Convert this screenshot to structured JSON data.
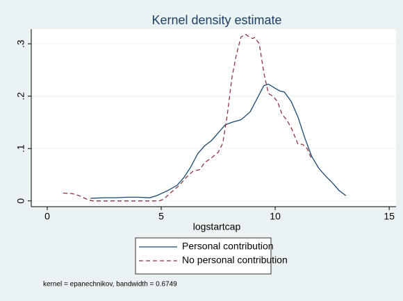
{
  "chart_data": {
    "type": "line",
    "title": "Kernel density estimate",
    "xlabel": "logstartcap",
    "note": "kernel = epanechnikov, bandwidth = 0.6749",
    "xlim": [
      -0.7,
      15.3
    ],
    "xticks": [
      0,
      5,
      10,
      15
    ],
    "ylim": [
      -0.011,
      0.328
    ],
    "yticks": [
      0,
      {
        "value": 0.1,
        "label": ".1"
      },
      {
        "value": 0.2,
        "label": ".2"
      },
      {
        "value": 0.3,
        "label": ".3"
      }
    ],
    "grid": true,
    "legend": "bottom",
    "series": [
      {
        "name": "Personal contribution",
        "color": "#1a476f",
        "dash": "solid",
        "x": [
          1.9,
          2.5,
          3,
          3.5,
          4,
          4.5,
          4.8,
          5.3,
          5.7,
          6.0,
          6.3,
          6.6,
          6.9,
          7.2,
          7.5,
          7.8,
          8.1,
          8.5,
          8.9,
          9.2,
          9.5,
          9.7,
          10.0,
          10.2,
          10.4,
          10.7,
          11.0,
          11.3,
          11.6,
          11.9,
          12.2,
          12.5,
          12.8,
          13.1
        ],
        "values": [
          0.005,
          0.006,
          0.006,
          0.007,
          0.007,
          0.006,
          0.01,
          0.02,
          0.03,
          0.045,
          0.065,
          0.09,
          0.105,
          0.115,
          0.13,
          0.145,
          0.15,
          0.155,
          0.17,
          0.195,
          0.22,
          0.223,
          0.215,
          0.21,
          0.208,
          0.19,
          0.16,
          0.12,
          0.085,
          0.063,
          0.048,
          0.035,
          0.02,
          0.01
        ]
      },
      {
        "name": "No personal contribution",
        "color": "#90353b",
        "dash": "dashed",
        "x": [
          0.7,
          1.1,
          1.4,
          1.8,
          2.0,
          3.0,
          4.0,
          4.9,
          5.1,
          5.4,
          5.8,
          6.1,
          6.4,
          6.7,
          6.9,
          7.2,
          7.5,
          7.7,
          7.9,
          8.1,
          8.3,
          8.5,
          8.7,
          8.8,
          9.0,
          9.1,
          9.3,
          9.5,
          9.7,
          9.9,
          10.1,
          10.3,
          10.5,
          10.7,
          11.0,
          11.2,
          11.4,
          11.6
        ],
        "values": [
          0.015,
          0.014,
          0.01,
          0.002,
          0,
          0,
          0,
          0,
          0.003,
          0.015,
          0.03,
          0.045,
          0.057,
          0.06,
          0.073,
          0.082,
          0.093,
          0.11,
          0.165,
          0.235,
          0.28,
          0.313,
          0.318,
          0.315,
          0.31,
          0.312,
          0.3,
          0.245,
          0.205,
          0.2,
          0.19,
          0.165,
          0.155,
          0.14,
          0.108,
          0.108,
          0.1,
          0.08
        ]
      }
    ]
  }
}
